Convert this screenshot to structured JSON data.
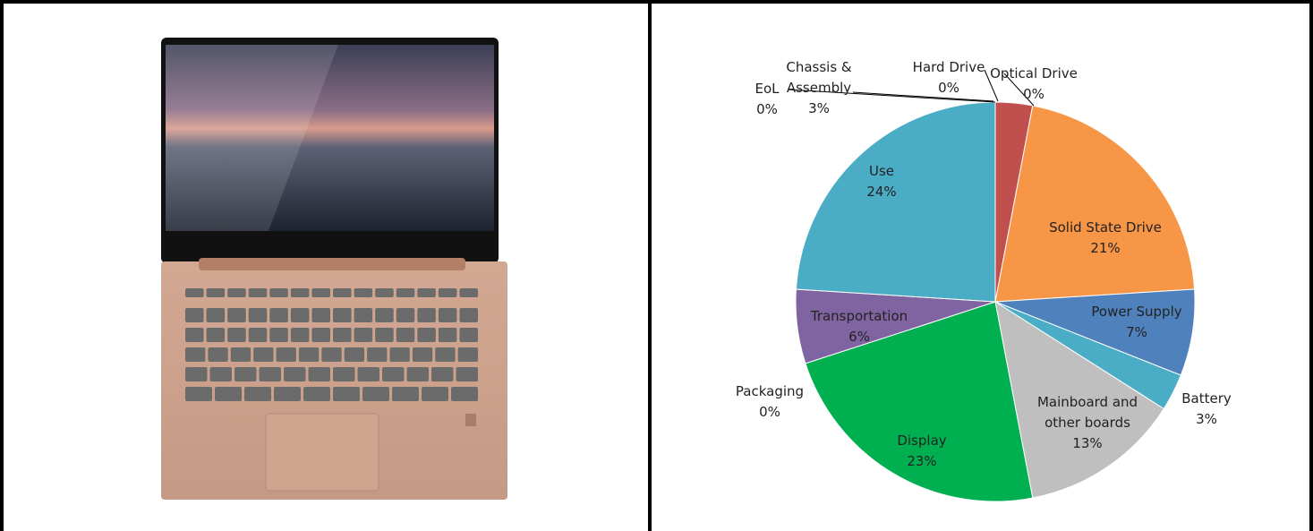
{
  "chart_data": {
    "type": "pie",
    "categories": [
      "EoL",
      "Chassis & Assembly",
      "Hard Drive",
      "Optical Drive",
      "Solid State Drive",
      "Power Supply",
      "Battery",
      "Mainboard and other boards",
      "Display",
      "Packaging",
      "Transportation",
      "Use"
    ],
    "values": [
      0,
      3,
      0,
      0,
      21,
      7,
      3,
      13,
      23,
      0,
      6,
      24
    ],
    "value_labels": [
      "0%",
      "3%",
      "0%",
      "0%",
      "21%",
      "7%",
      "3%",
      "13%",
      "23%",
      "0%",
      "6%",
      "24%"
    ],
    "colors": [
      "#f79646",
      "#c0504d",
      "#9bbb59",
      "#8064a2",
      "#f79646",
      "#4f81bd",
      "#4bacc6",
      "#bfbfbf",
      "#00b050",
      "#9bbb59",
      "#8064a2",
      "#4bacc6"
    ]
  }
}
